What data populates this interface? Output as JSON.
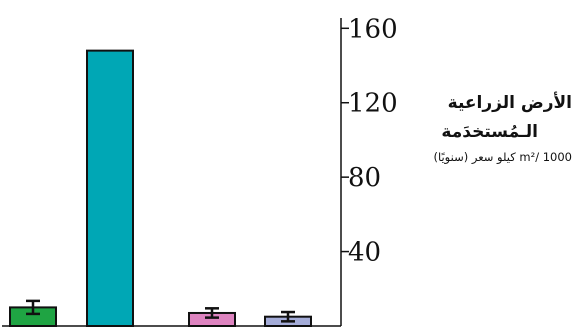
{
  "chart_data": {
    "type": "bar",
    "title": "",
    "xlabel": "",
    "ylabel_lines": [
      "الأرض الزراعية",
      "الـمُستخدَمة",
      "m²/ 1000 كيلو سعر (سنويًا)"
    ],
    "y_ticks": [
      40,
      80,
      120,
      160
    ],
    "ylim": [
      0,
      165
    ],
    "categories": [
      "",
      "",
      "",
      ""
    ],
    "values": [
      10,
      148,
      7,
      5
    ],
    "error": [
      3.5,
      0,
      2.5,
      2.5
    ],
    "colors": [
      "#1fa443",
      "#00a7b5",
      "#de84c0",
      "#a4acd8"
    ],
    "grid": false,
    "legend": "none",
    "y_axis_side": "right"
  }
}
